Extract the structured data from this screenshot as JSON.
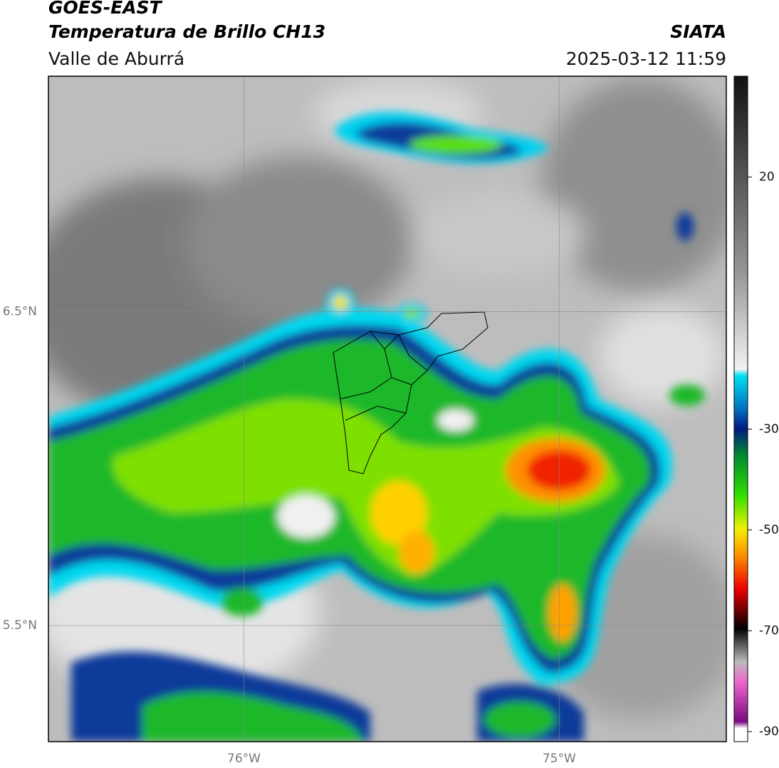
{
  "header": {
    "satellite": "GOES-EAST",
    "product": "Temperatura de Brillo CH13",
    "region": "Valle de Aburrá",
    "agency": "SIATA",
    "datetime": "2025-03-12 11:59"
  },
  "map": {
    "xlim": [
      -76.62,
      -74.47
    ],
    "ylim": [
      5.13,
      7.25
    ],
    "xticks": [
      {
        "value": -76,
        "label": "76°W"
      },
      {
        "value": -75,
        "label": "75°W"
      }
    ],
    "yticks": [
      {
        "value": 6.5,
        "label": "6.5°N"
      },
      {
        "value": 5.5,
        "label": "5.5°N"
      }
    ],
    "grid": true
  },
  "colorbar": {
    "lim": [
      -92,
      40
    ],
    "ticks": [
      20,
      -30,
      -50,
      -70,
      -90
    ]
  }
}
